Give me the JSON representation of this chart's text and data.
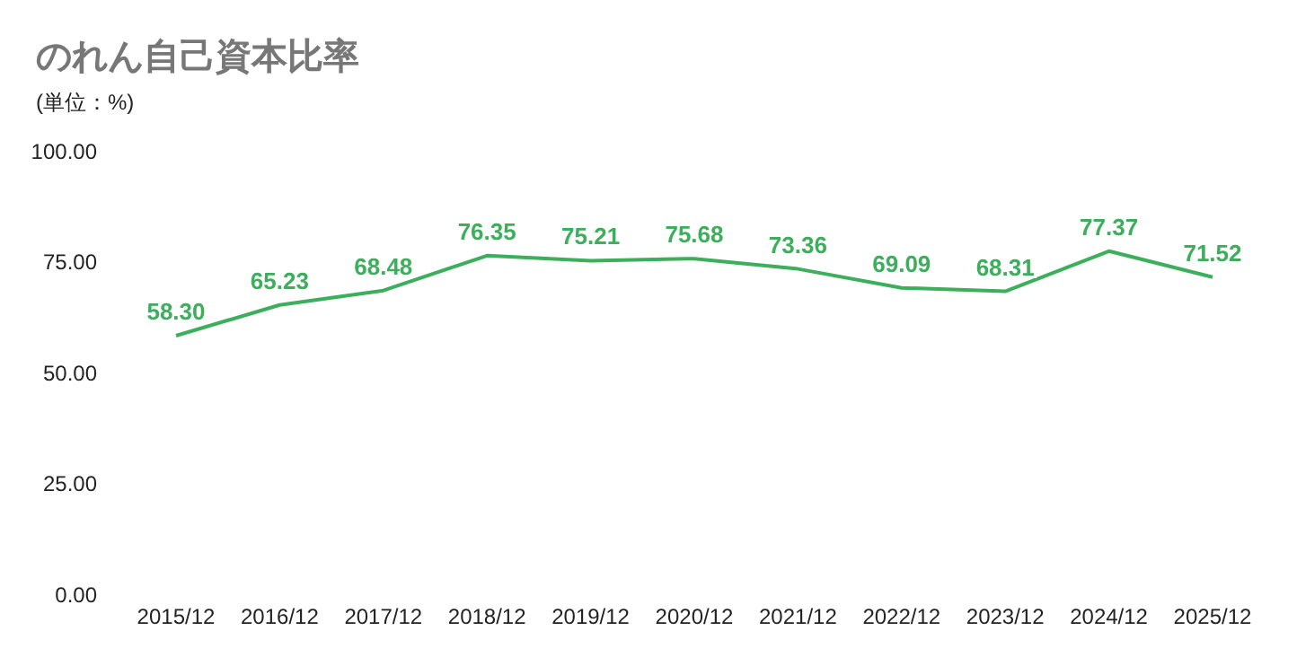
{
  "chart_data": {
    "type": "line",
    "title": "のれん自己資本比率",
    "subtitle": "(単位：%)",
    "categories": [
      "2015/12",
      "2016/12",
      "2017/12",
      "2018/12",
      "2019/12",
      "2020/12",
      "2021/12",
      "2022/12",
      "2023/12",
      "2024/12",
      "2025/12"
    ],
    "values": [
      58.3,
      65.23,
      68.48,
      76.35,
      75.21,
      75.68,
      73.36,
      69.09,
      68.31,
      77.37,
      71.52
    ],
    "color": "#3cae5c",
    "ylim": [
      0,
      100
    ],
    "yticks": [
      {
        "value": 0,
        "label": "0.00"
      },
      {
        "value": 25,
        "label": "25.00"
      },
      {
        "value": 50,
        "label": "50.00"
      },
      {
        "value": 75,
        "label": "75.00"
      },
      {
        "value": 100,
        "label": "100.00"
      }
    ],
    "value_labels": [
      "58.30",
      "65.23",
      "68.48",
      "76.35",
      "75.21",
      "75.68",
      "73.36",
      "69.09",
      "68.31",
      "77.37",
      "71.52"
    ],
    "grid": false,
    "legend": false,
    "marker": "none",
    "line_style": "solid"
  }
}
